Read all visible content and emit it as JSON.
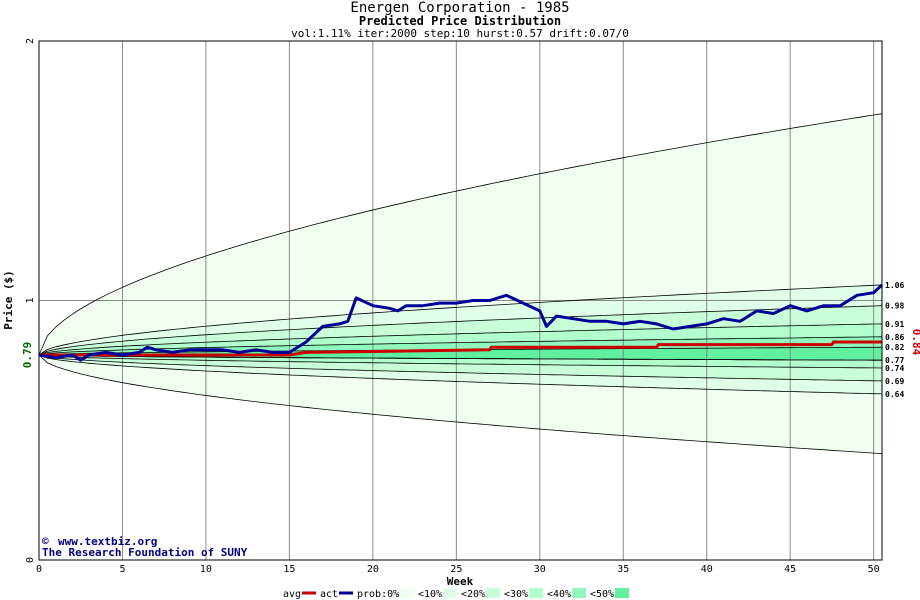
{
  "chart_data": {
    "type": "line",
    "title": "Energen Corporation - 1985",
    "subtitle": "Predicted Price Distribution",
    "params": "vol:1.11% iter:2000 step:10 hurst:0.57 drift:0.07/0",
    "xlabel": "Week",
    "ylabel": "Price ($)",
    "xlim": [
      0,
      50.5
    ],
    "ylim": [
      0,
      2
    ],
    "x_ticks": [
      "0",
      "5",
      "10",
      "15",
      "20",
      "25",
      "30",
      "35",
      "40",
      "45",
      "50"
    ],
    "y_ticks": [
      "0",
      "1",
      "2"
    ],
    "grid": true,
    "start_price": "0.79",
    "end_price": "0.84",
    "right_labels": [
      "1.06",
      "0.98",
      "0.91",
      "0.86",
      "0.82",
      "0.77",
      "0.74",
      "0.69",
      "0.64"
    ],
    "colors": {
      "band_outer": "#f0fff0",
      "band_10": "#e0ffe8",
      "band_20": "#c8ffd8",
      "band_30": "#b0ffcc",
      "band_40": "#90f8bc",
      "band_50": "#60f0a0",
      "avg": "#cc0000",
      "act": "#000099",
      "end_label": "#cc0000"
    },
    "envelope": [
      {
        "name": "0%",
        "upper_end": 1.72,
        "lower_end": 0.41
      },
      {
        "name": "<10%",
        "upper_end": 1.06,
        "lower_end": 0.64
      },
      {
        "name": "<20%",
        "upper_end": 0.98,
        "lower_end": 0.69
      },
      {
        "name": "<30%",
        "upper_end": 0.91,
        "lower_end": 0.74
      },
      {
        "name": "<40%",
        "upper_end": 0.86,
        "lower_end": 0.77
      },
      {
        "name": "<50%",
        "upper_end": 0.82,
        "lower_end": 0.77
      }
    ],
    "series": [
      {
        "name": "avg",
        "x": [
          0,
          5,
          10,
          15,
          16,
          27,
          27.1,
          37,
          37.1,
          47.5,
          47.6,
          50.5
        ],
        "values": [
          0.79,
          0.79,
          0.79,
          0.79,
          0.8,
          0.81,
          0.82,
          0.82,
          0.83,
          0.83,
          0.84,
          0.84
        ]
      },
      {
        "name": "act",
        "x": [
          0,
          1,
          2,
          2.5,
          3,
          4,
          5,
          6,
          6.5,
          7,
          8,
          9,
          10,
          11,
          12,
          13,
          14,
          15,
          16,
          17,
          18,
          18.5,
          19,
          20,
          21,
          21.5,
          22,
          23,
          24,
          25,
          26,
          27,
          28,
          29,
          30,
          30.4,
          31,
          32,
          33,
          34,
          35,
          36,
          37,
          38,
          39,
          40,
          41,
          42,
          43,
          44,
          45,
          46,
          47,
          48,
          49,
          50,
          50.5
        ],
        "values": [
          0.79,
          0.78,
          0.79,
          0.77,
          0.79,
          0.8,
          0.79,
          0.8,
          0.82,
          0.81,
          0.8,
          0.81,
          0.81,
          0.81,
          0.8,
          0.81,
          0.8,
          0.8,
          0.84,
          0.9,
          0.91,
          0.92,
          1.01,
          0.98,
          0.97,
          0.96,
          0.98,
          0.98,
          0.99,
          0.99,
          1.0,
          1.0,
          1.02,
          0.99,
          0.96,
          0.9,
          0.94,
          0.93,
          0.92,
          0.92,
          0.91,
          0.92,
          0.91,
          0.89,
          0.9,
          0.91,
          0.93,
          0.92,
          0.96,
          0.95,
          0.98,
          0.96,
          0.98,
          0.98,
          1.02,
          1.03,
          1.06
        ]
      }
    ],
    "legend": {
      "placement": "bottom",
      "items": [
        "avg",
        "act",
        "prob:0%",
        "<10%",
        "<20%",
        "<30%",
        "<40%",
        "<50%"
      ]
    }
  },
  "credit": {
    "line1": "www.textbiz.org",
    "line2": "The Research Foundation of SUNY",
    "copyright_symbol": "©"
  }
}
